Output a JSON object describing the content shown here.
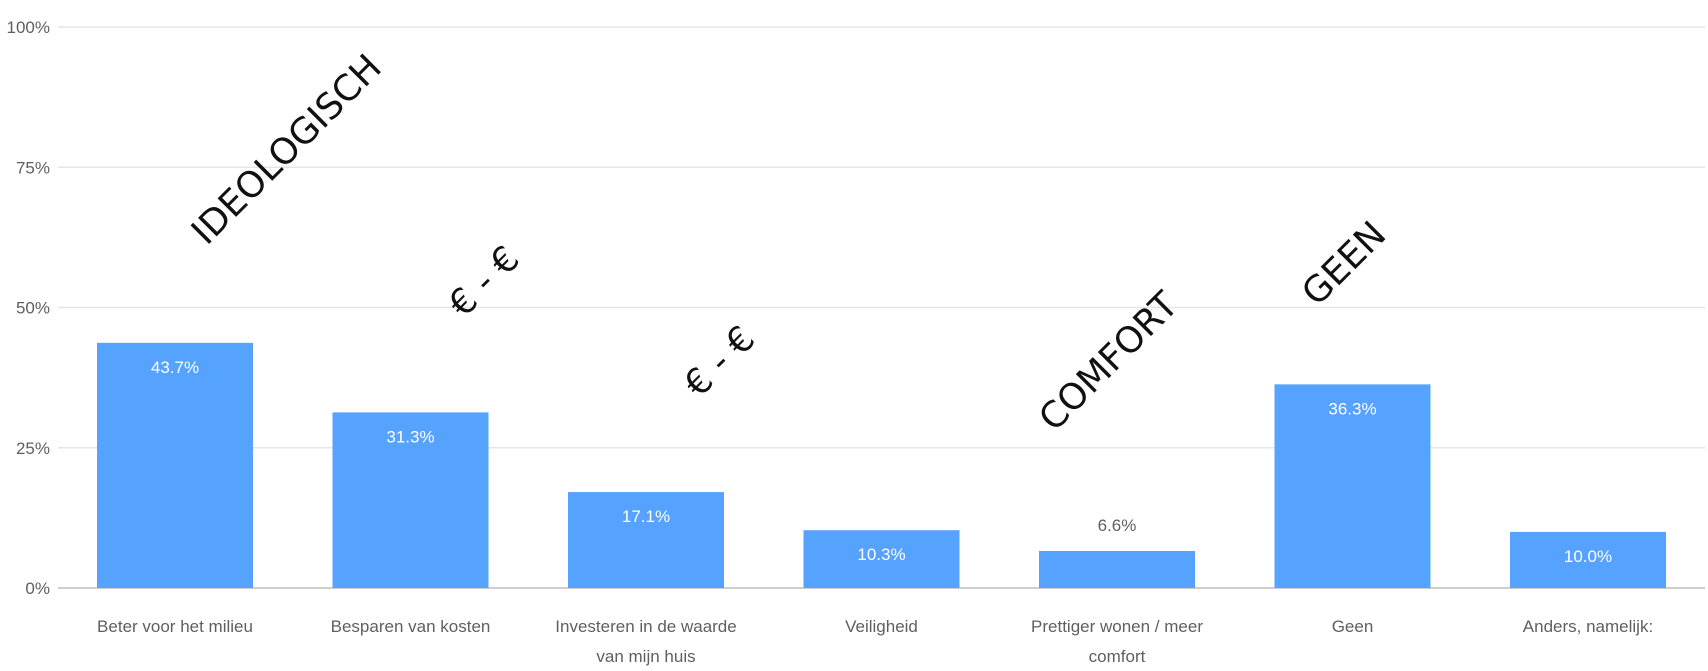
{
  "chart_data": {
    "type": "bar",
    "title": "",
    "xlabel": "",
    "ylabel": "",
    "ylim": [
      0,
      100
    ],
    "yticks": [
      "0%",
      "25%",
      "50%",
      "75%",
      "100%"
    ],
    "grid": true,
    "legend": "none",
    "bar_color": "#55a2ff",
    "categories": [
      [
        "Beter voor het milieu"
      ],
      [
        "Besparen van kosten"
      ],
      [
        "Investeren in de waarde",
        "van mijn huis"
      ],
      [
        "Veiligheid"
      ],
      [
        "Prettiger wonen / meer",
        "comfort"
      ],
      [
        "Geen"
      ],
      [
        "Anders, namelijk:"
      ]
    ],
    "values": [
      43.7,
      31.3,
      17.1,
      10.3,
      6.6,
      36.3,
      10.0
    ],
    "value_labels": [
      "43.7%",
      "31.3%",
      "17.1%",
      "10.3%",
      "6.6%",
      "36.3%",
      "10.0%"
    ],
    "annotations": [
      {
        "text": "IDEOLOGISCH",
        "category_index": 0
      },
      {
        "text": "€ - €",
        "category_index": 1
      },
      {
        "text": "€ - €",
        "category_index": 2
      },
      {
        "text": "COMFORT",
        "category_index": 4
      },
      {
        "text": "GEEN",
        "category_index": 5
      }
    ]
  }
}
